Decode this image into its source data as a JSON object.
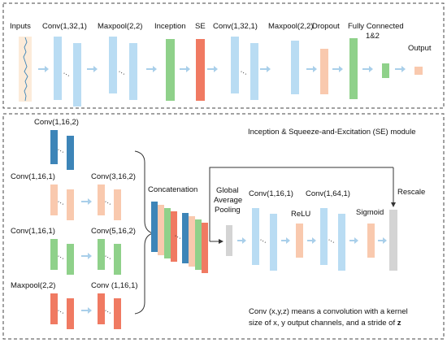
{
  "top_panel": {
    "labels": {
      "inputs": "Inputs",
      "conv1": "Conv(1,32,1)",
      "maxpool1": "Maxpool(2,2)",
      "inception": "Inception",
      "se": "SE",
      "conv2": "Conv(1,32,1)",
      "maxpool2": "Maxpool(2,2)",
      "dropout": "Dropout",
      "fc_line1": "Fully Connected",
      "fc_line2": "1&2",
      "output": "Output"
    }
  },
  "bottom_panel": {
    "module_title": "Inception & Squeeze-and-Excitation (SE) module",
    "branches": {
      "b1_conv": "Conv(1,16,2)",
      "b2_conv_a": "Conv(1,16,1)",
      "b2_conv_b": "Conv(3,16,2)",
      "b3_conv_a": "Conv(1,16,1)",
      "b3_conv_b": "Conv(5,16,2)",
      "b4_pool": "Maxpool(2,2)",
      "b4_conv": "Conv (1,16,1)"
    },
    "concatenation": "Concatenation",
    "se_block": {
      "gap_line1": "Global",
      "gap_line2": "Average",
      "gap_line3": "Pooling",
      "conv_a": "Conv(1,16,1)",
      "relu": "ReLU",
      "conv_b": "Conv(1,64,1)",
      "sigmoid": "Sigmoid",
      "rescale": "Rescale"
    },
    "note_line1": "Conv (x,y,z) means a convolution with a kernel",
    "note_line2_prefix": "size of x, y output channels, and a stride of ",
    "note_line2_z": "z"
  },
  "colors": {
    "light_blue": "#b9dcf3",
    "dark_blue": "#3d85b8",
    "green": "#8fd18a",
    "red": "#f07a62",
    "peach": "#f9c9ae",
    "grey": "#d4d4d4",
    "arrow": "#a9cfea",
    "dashed_border": "#444444",
    "text": "#111111"
  },
  "icons": {
    "dots": "ellipsis-icon",
    "arrow": "right-arrow-icon"
  }
}
